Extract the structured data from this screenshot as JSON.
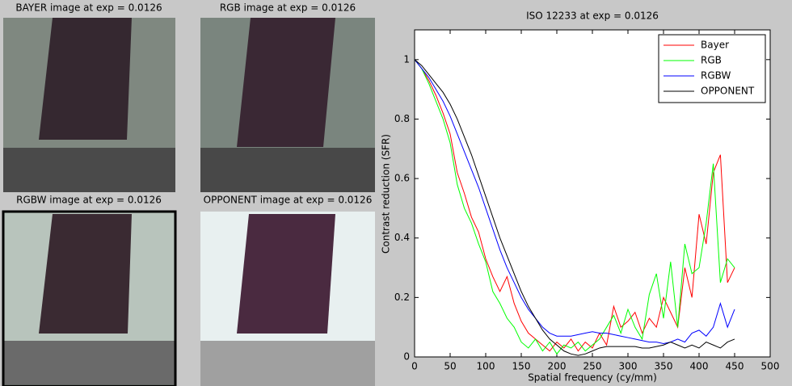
{
  "panels": [
    {
      "title": "BAYER image at exp = 0.0126"
    },
    {
      "title": "RGB image at exp = 0.0126"
    },
    {
      "title": "RGBW image at exp = 0.0126"
    },
    {
      "title": "OPPONENT image at exp = 0.0126"
    }
  ],
  "chart_data": {
    "type": "line",
    "title": "ISO 12233 at exp = 0.0126",
    "x_label": "Spatial frequency (cy/mm)",
    "y_label": "Contrast reduction (SFR)",
    "x": [
      0,
      10,
      20,
      30,
      40,
      50,
      60,
      70,
      80,
      90,
      100,
      110,
      120,
      130,
      140,
      150,
      160,
      170,
      180,
      190,
      200,
      210,
      220,
      230,
      240,
      250,
      260,
      270,
      280,
      290,
      300,
      310,
      320,
      330,
      340,
      350,
      360,
      370,
      380,
      390,
      400,
      410,
      420,
      430,
      440,
      450
    ],
    "series": [
      {
        "name": "Bayer",
        "color": "#ff0000",
        "values": [
          1,
          0.97,
          0.93,
          0.88,
          0.82,
          0.75,
          0.62,
          0.55,
          0.47,
          0.42,
          0.33,
          0.27,
          0.22,
          0.27,
          0.18,
          0.12,
          0.08,
          0.06,
          0.04,
          0.02,
          0.05,
          0.03,
          0.06,
          0.02,
          0.05,
          0.03,
          0.08,
          0.04,
          0.17,
          0.1,
          0.12,
          0.15,
          0.08,
          0.13,
          0.1,
          0.2,
          0.15,
          0.1,
          0.3,
          0.2,
          0.48,
          0.38,
          0.62,
          0.68,
          0.25,
          0.3
        ]
      },
      {
        "name": "RGB",
        "color": "#00ff00",
        "values": [
          1,
          0.97,
          0.92,
          0.86,
          0.8,
          0.72,
          0.58,
          0.5,
          0.45,
          0.38,
          0.32,
          0.22,
          0.18,
          0.13,
          0.1,
          0.05,
          0.03,
          0.06,
          0.02,
          0.05,
          0.01,
          0.04,
          0.03,
          0.05,
          0.02,
          0.04,
          0.06,
          0.1,
          0.14,
          0.08,
          0.16,
          0.1,
          0.06,
          0.21,
          0.28,
          0.13,
          0.32,
          0.1,
          0.38,
          0.28,
          0.3,
          0.45,
          0.65,
          0.25,
          0.33,
          0.3
        ]
      },
      {
        "name": "RGBW",
        "color": "#0000ff",
        "values": [
          1,
          0.97,
          0.94,
          0.9,
          0.86,
          0.81,
          0.75,
          0.69,
          0.63,
          0.57,
          0.5,
          0.43,
          0.36,
          0.3,
          0.25,
          0.2,
          0.16,
          0.13,
          0.1,
          0.08,
          0.07,
          0.07,
          0.07,
          0.075,
          0.08,
          0.085,
          0.08,
          0.08,
          0.075,
          0.07,
          0.065,
          0.06,
          0.055,
          0.05,
          0.05,
          0.045,
          0.05,
          0.06,
          0.05,
          0.08,
          0.09,
          0.07,
          0.1,
          0.18,
          0.1,
          0.16
        ]
      },
      {
        "name": "OPPONENT",
        "color": "#000000",
        "values": [
          1,
          0.98,
          0.95,
          0.92,
          0.89,
          0.85,
          0.8,
          0.74,
          0.68,
          0.61,
          0.54,
          0.47,
          0.4,
          0.34,
          0.28,
          0.22,
          0.17,
          0.13,
          0.09,
          0.06,
          0.04,
          0.02,
          0.01,
          0.005,
          0.01,
          0.02,
          0.03,
          0.035,
          0.035,
          0.035,
          0.035,
          0.035,
          0.03,
          0.03,
          0.035,
          0.04,
          0.05,
          0.04,
          0.03,
          0.04,
          0.03,
          0.05,
          0.04,
          0.03,
          0.05,
          0.06
        ]
      }
    ],
    "xlim": [
      0,
      500
    ],
    "xticks": [
      0,
      50,
      100,
      150,
      200,
      250,
      300,
      350,
      400,
      450,
      500
    ],
    "ylim": [
      0,
      1.1
    ],
    "yticks": [
      0,
      0.2,
      0.4,
      0.6,
      0.8,
      1
    ],
    "grid": false,
    "legend": "northeast"
  }
}
